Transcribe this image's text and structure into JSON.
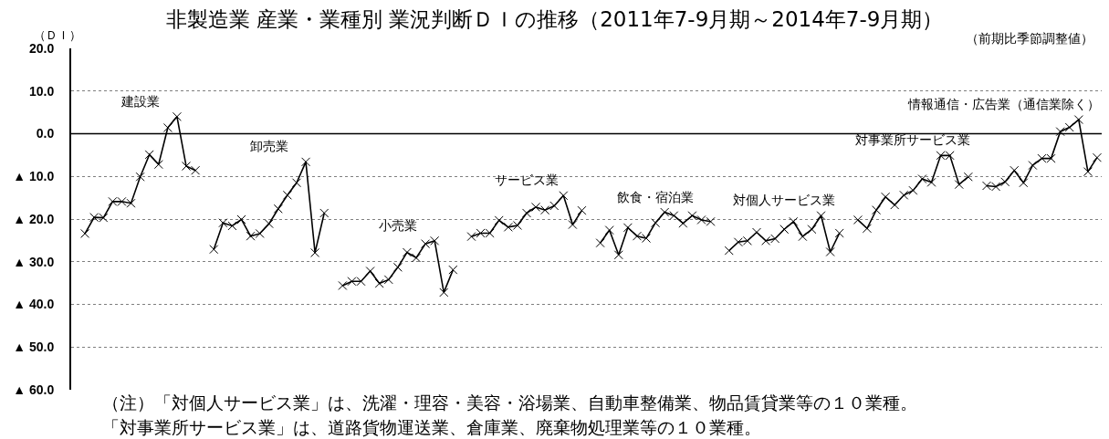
{
  "chart_data": {
    "type": "line",
    "title": "非製造業 産業・業種別 業況判断ＤＩの推移（2011年7-9月期～2014年7-9月期）",
    "subtitle": "（前期比季節調整値）",
    "ylabel": "（ＤＩ）",
    "annotations": [
      "（注）「対個人サービス業」は、洗濯・理容・美容・浴場業、自動車整備業、物品賃貸業等の１０業種。",
      "「対事業所サービス業」は、道路貨物運送業、倉庫業、廃棄物処理業等の１０業種。"
    ],
    "categories": [
      null,
      null,
      null,
      null,
      null,
      null,
      null,
      null,
      null,
      null,
      null,
      null,
      null,
      null,
      null,
      null,
      null,
      null,
      null,
      null,
      null,
      null,
      null,
      null,
      null,
      null,
      null,
      null,
      null,
      null,
      null,
      null,
      null,
      null,
      null,
      null,
      null,
      null,
      null,
      null,
      null,
      null,
      null,
      null,
      null,
      null,
      null,
      null,
      null,
      null,
      null,
      null,
      null,
      null,
      null,
      null,
      null,
      null,
      null,
      null,
      null,
      null,
      null,
      null,
      null,
      null,
      null,
      null,
      null,
      null,
      null,
      null,
      null,
      null,
      null,
      null,
      null,
      null,
      null,
      null,
      null,
      null,
      null,
      null,
      null,
      null,
      null,
      null,
      null,
      null,
      null,
      null,
      null,
      null,
      null,
      null,
      null,
      null,
      null,
      null,
      null,
      null,
      null,
      null,
      null,
      null,
      null,
      null,
      null,
      null,
      null,
      null
    ],
    "series": [
      {
        "name": "建設業",
        "color": "#000000",
        "values": [
          null,
          -23.4,
          -19.6,
          -19.7,
          -15.9,
          -15.9,
          -16.3,
          -10.1,
          -4.9,
          -7.2,
          1.4,
          4.0,
          -7.6,
          -8.6,
          null,
          null,
          null,
          null,
          null,
          null,
          null,
          null,
          null,
          null,
          null,
          null,
          null,
          null,
          null,
          null,
          null,
          null,
          null,
          null,
          null,
          null,
          null,
          null,
          null,
          null,
          null,
          null,
          null,
          null,
          null,
          null,
          null,
          null,
          null,
          null,
          null,
          null,
          null,
          null,
          null,
          null,
          null,
          null,
          null,
          null,
          null,
          null,
          null,
          null,
          null,
          null,
          null,
          null,
          null,
          null,
          null,
          null,
          null,
          null,
          null,
          null,
          null,
          null,
          null,
          null,
          null,
          null,
          null,
          null,
          null,
          null,
          null,
          null,
          null,
          null,
          null,
          null,
          null,
          null,
          null,
          null,
          null,
          null,
          null,
          null,
          null,
          null,
          null,
          null,
          null,
          null,
          null,
          null,
          null,
          null,
          null,
          null
        ]
      },
      {
        "name": "卸売業",
        "color": "#000000",
        "values": [
          null,
          null,
          null,
          null,
          null,
          null,
          null,
          null,
          null,
          null,
          null,
          null,
          null,
          null,
          null,
          -27.1,
          -20.9,
          -21.6,
          -20.1,
          -24.0,
          -23.4,
          -21.1,
          -17.6,
          -14.4,
          -11.5,
          -6.6,
          -27.9,
          -18.6,
          null,
          null,
          null,
          null,
          null,
          null,
          null,
          null,
          null,
          null,
          null,
          null,
          null,
          null,
          null,
          null,
          null,
          null,
          null,
          null,
          null,
          null,
          null,
          null,
          null,
          null,
          null,
          null,
          null,
          null,
          null,
          null,
          null,
          null,
          null,
          null,
          null,
          null,
          null,
          null,
          null,
          null,
          null,
          null,
          null,
          null,
          null,
          null,
          null,
          null,
          null,
          null,
          null,
          null,
          null,
          null,
          null,
          null,
          null,
          null,
          null,
          null,
          null,
          null,
          null,
          null,
          null,
          null,
          null,
          null,
          null,
          null,
          null,
          null,
          null,
          null,
          null,
          null,
          null,
          null,
          null,
          null,
          null,
          null
        ]
      },
      {
        "name": "小売業",
        "color": "#000000",
        "values": [
          null,
          null,
          null,
          null,
          null,
          null,
          null,
          null,
          null,
          null,
          null,
          null,
          null,
          null,
          null,
          null,
          null,
          null,
          null,
          null,
          null,
          null,
          null,
          null,
          null,
          null,
          null,
          null,
          null,
          -35.6,
          -34.6,
          -34.6,
          -32.2,
          -35.1,
          -34.2,
          -31.3,
          -27.8,
          -29.1,
          -25.8,
          -25.1,
          -37.2,
          -31.9,
          null,
          null,
          null,
          null,
          null,
          null,
          null,
          null,
          null,
          null,
          null,
          null,
          null,
          null,
          null,
          null,
          null,
          null,
          null,
          null,
          null,
          null,
          null,
          null,
          null,
          null,
          null,
          null,
          null,
          null,
          null,
          null,
          null,
          null,
          null,
          null,
          null,
          null,
          null,
          null,
          null,
          null,
          null,
          null,
          null,
          null,
          null,
          null,
          null,
          null,
          null,
          null,
          null,
          null,
          null,
          null,
          null,
          null,
          null,
          null,
          null,
          null,
          null,
          null,
          null,
          null,
          null,
          null,
          null,
          null
        ]
      },
      {
        "name": "サービス業",
        "color": "#000000",
        "values": [
          null,
          null,
          null,
          null,
          null,
          null,
          null,
          null,
          null,
          null,
          null,
          null,
          null,
          null,
          null,
          null,
          null,
          null,
          null,
          null,
          null,
          null,
          null,
          null,
          null,
          null,
          null,
          null,
          null,
          null,
          null,
          null,
          null,
          null,
          null,
          null,
          null,
          null,
          null,
          null,
          null,
          null,
          null,
          -24.1,
          -23.3,
          -23.3,
          -20.3,
          -21.9,
          -21.5,
          -18.6,
          -17.2,
          -17.9,
          -16.9,
          -14.5,
          -21.3,
          -18.0,
          null,
          null,
          null,
          null,
          null,
          null,
          null,
          null,
          null,
          null,
          null,
          null,
          null,
          null,
          null,
          null,
          null,
          null,
          null,
          null,
          null,
          null,
          null,
          null,
          null,
          null,
          null,
          null,
          null,
          null,
          null,
          null,
          null,
          null,
          null,
          null,
          null,
          null,
          null,
          null,
          null,
          null,
          null,
          null,
          null,
          null,
          null,
          null,
          null,
          null,
          null,
          null,
          null,
          null,
          null,
          null
        ]
      },
      {
        "name": "飲食・宿泊業",
        "color": "#000000",
        "values": [
          null,
          null,
          null,
          null,
          null,
          null,
          null,
          null,
          null,
          null,
          null,
          null,
          null,
          null,
          null,
          null,
          null,
          null,
          null,
          null,
          null,
          null,
          null,
          null,
          null,
          null,
          null,
          null,
          null,
          null,
          null,
          null,
          null,
          null,
          null,
          null,
          null,
          null,
          null,
          null,
          null,
          null,
          null,
          null,
          null,
          null,
          null,
          null,
          null,
          null,
          null,
          null,
          null,
          null,
          null,
          null,
          null,
          -25.6,
          -22.6,
          -28.4,
          -22.0,
          -24.0,
          -24.5,
          -20.9,
          -18.4,
          -19.2,
          -21.0,
          -19.2,
          -20.2,
          -20.6,
          null,
          null,
          null,
          null,
          null,
          null,
          null,
          null,
          null,
          null,
          null,
          null,
          null,
          null,
          null,
          null,
          null,
          null,
          null,
          null,
          null,
          null,
          null,
          null,
          null,
          null,
          null,
          null,
          null,
          null,
          null,
          null,
          null,
          null,
          null,
          null,
          null,
          null,
          null,
          null,
          null,
          null
        ]
      },
      {
        "name": "対個人サービス業",
        "color": "#000000",
        "values": [
          null,
          null,
          null,
          null,
          null,
          null,
          null,
          null,
          null,
          null,
          null,
          null,
          null,
          null,
          null,
          null,
          null,
          null,
          null,
          null,
          null,
          null,
          null,
          null,
          null,
          null,
          null,
          null,
          null,
          null,
          null,
          null,
          null,
          null,
          null,
          null,
          null,
          null,
          null,
          null,
          null,
          null,
          null,
          null,
          null,
          null,
          null,
          null,
          null,
          null,
          null,
          null,
          null,
          null,
          null,
          null,
          null,
          null,
          null,
          null,
          null,
          null,
          null,
          null,
          null,
          null,
          null,
          null,
          null,
          null,
          null,
          -27.4,
          -25.4,
          -25.1,
          -23.1,
          -25.1,
          -24.6,
          -22.4,
          -20.6,
          -24.1,
          -22.4,
          -19.2,
          -27.7,
          -23.3,
          null,
          null,
          null,
          null,
          null,
          null,
          null,
          null,
          null,
          null,
          null,
          null,
          null,
          null,
          null,
          null,
          null,
          null,
          null,
          null,
          null,
          null,
          null,
          null,
          null,
          null,
          null,
          null
        ]
      },
      {
        "name": "対事業所サービス業",
        "color": "#000000",
        "values": [
          null,
          null,
          null,
          null,
          null,
          null,
          null,
          null,
          null,
          null,
          null,
          null,
          null,
          null,
          null,
          null,
          null,
          null,
          null,
          null,
          null,
          null,
          null,
          null,
          null,
          null,
          null,
          null,
          null,
          null,
          null,
          null,
          null,
          null,
          null,
          null,
          null,
          null,
          null,
          null,
          null,
          null,
          null,
          null,
          null,
          null,
          null,
          null,
          null,
          null,
          null,
          null,
          null,
          null,
          null,
          null,
          null,
          null,
          null,
          null,
          null,
          null,
          null,
          null,
          null,
          null,
          null,
          null,
          null,
          null,
          null,
          null,
          null,
          null,
          null,
          null,
          null,
          null,
          null,
          null,
          null,
          null,
          null,
          null,
          null,
          -20.2,
          -22.2,
          -17.9,
          -14.8,
          -16.7,
          -14.4,
          -13.3,
          -10.6,
          -11.4,
          -5.1,
          -5.1,
          -11.9,
          -10.1,
          null,
          null,
          null,
          null,
          null,
          null,
          null,
          null,
          null,
          null,
          null,
          null,
          null,
          null
        ]
      },
      {
        "name": "情報通信・広告業（通信業除く）",
        "color": "#000000",
        "values": [
          null,
          null,
          null,
          null,
          null,
          null,
          null,
          null,
          null,
          null,
          null,
          null,
          null,
          null,
          null,
          null,
          null,
          null,
          null,
          null,
          null,
          null,
          null,
          null,
          null,
          null,
          null,
          null,
          null,
          null,
          null,
          null,
          null,
          null,
          null,
          null,
          null,
          null,
          null,
          null,
          null,
          null,
          null,
          null,
          null,
          null,
          null,
          null,
          null,
          null,
          null,
          null,
          null,
          null,
          null,
          null,
          null,
          null,
          null,
          null,
          null,
          null,
          null,
          null,
          null,
          null,
          null,
          null,
          null,
          null,
          null,
          null,
          null,
          null,
          null,
          null,
          null,
          null,
          null,
          null,
          null,
          null,
          null,
          null,
          null,
          null,
          null,
          null,
          null,
          null,
          null,
          null,
          null,
          null,
          null,
          null,
          null,
          null,
          null,
          -12.2,
          -12.4,
          -11.3,
          -8.6,
          -11.5,
          -7.4,
          -5.8,
          -5.8,
          0.5,
          1.5,
          3.3,
          -8.9,
          -5.6
        ]
      }
    ],
    "ylim": [
      -60,
      20
    ],
    "yticks": [
      {
        "value": 20,
        "label": "20.0"
      },
      {
        "value": 10,
        "label": "10.0"
      },
      {
        "value": 0,
        "label": "0.0"
      },
      {
        "value": -10,
        "label": "▲ 10.0"
      },
      {
        "value": -20,
        "label": "▲ 20.0"
      },
      {
        "value": -30,
        "label": "▲ 30.0"
      },
      {
        "value": -40,
        "label": "▲ 40.0"
      },
      {
        "value": -50,
        "label": "▲ 50.0"
      },
      {
        "value": -60,
        "label": "▲ 60.0"
      }
    ],
    "ref_lines": [
      {
        "axis": "y",
        "value": 0,
        "color": "#000000",
        "line_style": "solid"
      }
    ],
    "grid": "y",
    "legend": false,
    "tick_labels": "y",
    "marker": "cross",
    "line_style": "solid"
  }
}
